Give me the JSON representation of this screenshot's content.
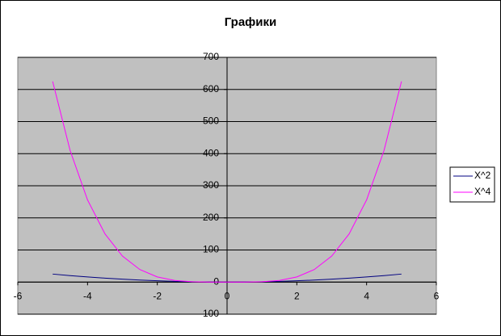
{
  "chart_data": {
    "type": "line",
    "title": "Графики",
    "x": [
      -5,
      -4.5,
      -4,
      -3.5,
      -3,
      -2.5,
      -2,
      -1.5,
      -1,
      -0.5,
      0,
      0.5,
      1,
      1.5,
      2,
      2.5,
      3,
      3.5,
      4,
      4.5,
      5
    ],
    "series": [
      {
        "name": "X^2",
        "color": "#000080",
        "values": [
          25,
          20.25,
          16,
          12.25,
          9,
          6.25,
          4,
          2.25,
          1,
          0.25,
          0,
          0.25,
          1,
          2.25,
          4,
          6.25,
          9,
          12.25,
          16,
          20.25,
          25
        ]
      },
      {
        "name": "X^4",
        "color": "#ff00ff",
        "values": [
          625,
          410.0625,
          256,
          150.0625,
          81,
          39.0625,
          16,
          5.0625,
          1,
          0.0625,
          0,
          0.0625,
          1,
          5.0625,
          16,
          39.0625,
          81,
          150.0625,
          256,
          410.0625,
          625
        ]
      }
    ],
    "xlim": [
      -6,
      6
    ],
    "xticks": [
      -6,
      -4,
      -2,
      0,
      2,
      4,
      6
    ],
    "ylim": [
      -100,
      700
    ],
    "yticks": [
      -100,
      0,
      100,
      200,
      300,
      400,
      500,
      600,
      700
    ],
    "grid": true,
    "legend": "right",
    "plot_background": "#c0c0c0"
  }
}
